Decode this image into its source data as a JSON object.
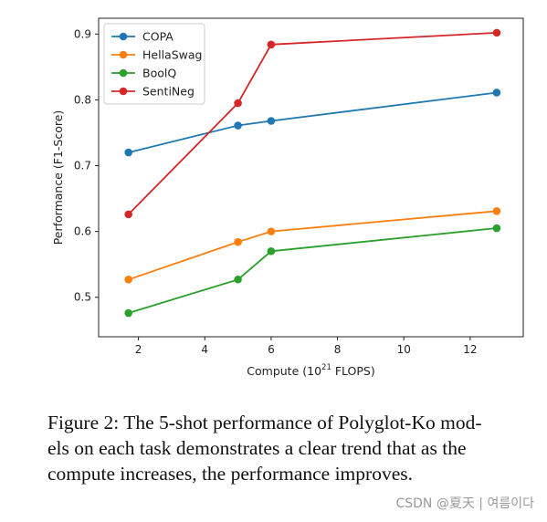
{
  "chart_data": {
    "type": "line",
    "xlabel": "Compute (10",
    "xlabel_exponent": "21",
    "xlabel_suffix": " FLOPS)",
    "ylabel": "Performance (F1-Score)",
    "x": [
      1.7,
      5.0,
      6.0,
      12.8
    ],
    "xlim": [
      0.8,
      13.6
    ],
    "ylim": [
      0.44,
      0.924
    ],
    "xticks": [
      2,
      4,
      6,
      8,
      10,
      12
    ],
    "yticks": [
      0.5,
      0.6,
      0.7,
      0.8,
      0.9
    ],
    "xtick_labels": [
      "2",
      "4",
      "6",
      "8",
      "10",
      "12"
    ],
    "ytick_labels": [
      "0.5",
      "0.6",
      "0.7",
      "0.8",
      "0.9"
    ],
    "grid": false,
    "legend_position": "top-left",
    "series": [
      {
        "name": "COPA",
        "color": "#1f77b4",
        "values": [
          0.72,
          0.761,
          0.768,
          0.811
        ]
      },
      {
        "name": "HellaSwag",
        "color": "#ff7f0e",
        "values": [
          0.527,
          0.584,
          0.6,
          0.631
        ]
      },
      {
        "name": "BoolQ",
        "color": "#2ca02c",
        "values": [
          0.476,
          0.527,
          0.57,
          0.605
        ]
      },
      {
        "name": "SentiNeg",
        "color": "#d62728",
        "values": [
          0.626,
          0.795,
          0.884,
          0.902
        ]
      }
    ]
  },
  "caption": {
    "lines": [
      "Figure 2: The 5-shot performance of Polyglot-Ko mod-",
      "els on each task demonstrates a clear trend that as the",
      "compute increases, the performance improves."
    ]
  },
  "watermark": "CSDN @夏天 | 여름이다"
}
